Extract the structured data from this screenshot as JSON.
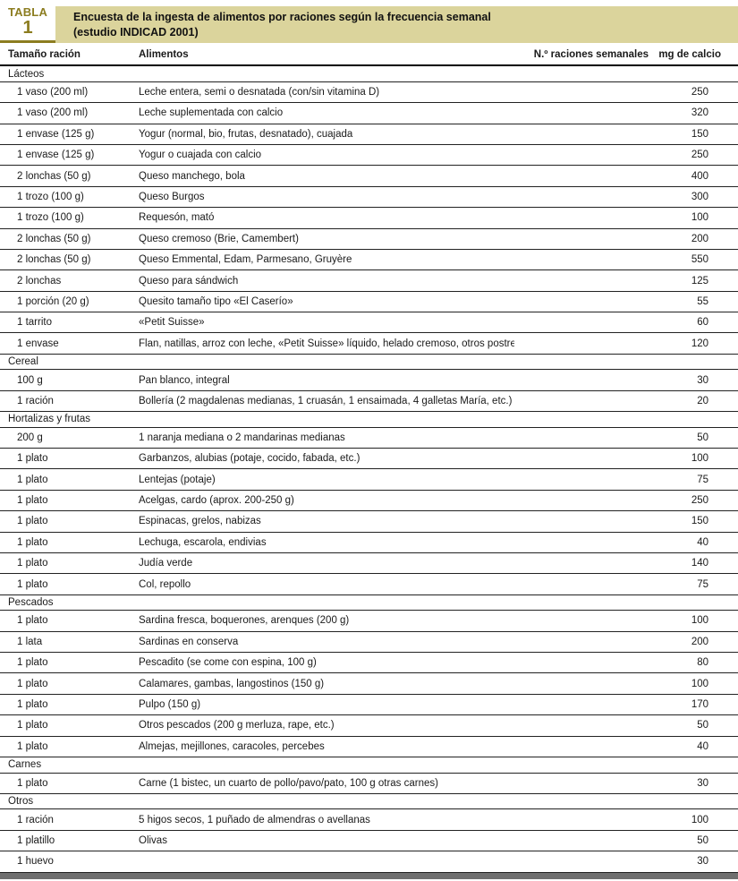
{
  "header": {
    "table_word": "TABLA",
    "table_number": "1",
    "title_line1": "Encuesta de la ingesta de alimentos por raciones según la frecuencia semanal",
    "title_line2": "(estudio INDICAD 2001)"
  },
  "columns": [
    "Tamaño ración",
    "Alimentos",
    "N.º raciones semanales",
    "mg de calcio"
  ],
  "colors": {
    "accent_olive": "#8c7d20",
    "banner_background": "#dbd49c",
    "bottom_bar_gray": "#6f6f6f",
    "row_line": "#222222"
  },
  "sections": [
    {
      "name": "Lácteos",
      "rows": [
        {
          "size": "1 vaso (200 ml)",
          "food": "Leche entera, semi o desnatada (con/sin vitamina D)",
          "servings": "",
          "calcium": "250"
        },
        {
          "size": "1 vaso (200 ml)",
          "food": "Leche suplementada con calcio",
          "servings": "",
          "calcium": "320"
        },
        {
          "size": "1 envase (125 g)",
          "food": "Yogur (normal, bio, frutas, desnatado), cuajada",
          "servings": "",
          "calcium": "150"
        },
        {
          "size": "1 envase (125 g)",
          "food": "Yogur o cuajada con calcio",
          "servings": "",
          "calcium": "250"
        },
        {
          "size": "2 lonchas (50 g)",
          "food": "Queso manchego, bola",
          "servings": "",
          "calcium": "400"
        },
        {
          "size": "1 trozo (100 g)",
          "food": "Queso Burgos",
          "servings": "",
          "calcium": "300"
        },
        {
          "size": "1 trozo (100 g)",
          "food": "Requesón, mató",
          "servings": "",
          "calcium": "100"
        },
        {
          "size": "2 lonchas (50 g)",
          "food": "Queso cremoso (Brie, Camembert)",
          "servings": "",
          "calcium": "200"
        },
        {
          "size": "2 lonchas (50 g)",
          "food": "Queso Emmental, Edam, Parmesano, Gruyère",
          "servings": "",
          "calcium": "550"
        },
        {
          "size": "2 lonchas",
          "food": "Queso para sándwich",
          "servings": "",
          "calcium": "125"
        },
        {
          "size": "1 porción (20 g)",
          "food": "Quesito tamaño tipo «El Caserío»",
          "servings": "",
          "calcium": "55"
        },
        {
          "size": "1 tarrito",
          "food": "«Petit Suisse»",
          "servings": "",
          "calcium": "60"
        },
        {
          "size": "1 envase",
          "food": "Flan, natillas, arroz con leche, «Petit Suisse» líquido, helado cremoso, otros postres lácteos",
          "servings": "",
          "calcium": "120"
        }
      ]
    },
    {
      "name": "Cereal",
      "rows": [
        {
          "size": "100 g",
          "food": "Pan blanco, integral",
          "servings": "",
          "calcium": "30"
        },
        {
          "size": "1 ración",
          "food": "Bollería (2 magdalenas medianas, 1 cruasán, 1 ensaimada, 4 galletas María, etc.)",
          "servings": "",
          "calcium": "20"
        }
      ]
    },
    {
      "name": "Hortalizas y frutas",
      "rows": [
        {
          "size": "200 g",
          "food": "1 naranja mediana o 2 mandarinas medianas",
          "servings": "",
          "calcium": "50"
        },
        {
          "size": "1 plato",
          "food": "Garbanzos, alubias (potaje, cocido, fabada, etc.)",
          "servings": "",
          "calcium": "100"
        },
        {
          "size": "1 plato",
          "food": "Lentejas (potaje)",
          "servings": "",
          "calcium": "75"
        },
        {
          "size": "1 plato",
          "food": "Acelgas, cardo (aprox. 200-250 g)",
          "servings": "",
          "calcium": "250"
        },
        {
          "size": "1 plato",
          "food": "Espinacas, grelos, nabizas",
          "servings": "",
          "calcium": "150"
        },
        {
          "size": "1 plato",
          "food": "Lechuga, escarola, endivias",
          "servings": "",
          "calcium": "40"
        },
        {
          "size": "1 plato",
          "food": "Judía verde",
          "servings": "",
          "calcium": "140"
        },
        {
          "size": "1 plato",
          "food": "Col, repollo",
          "servings": "",
          "calcium": "75"
        }
      ]
    },
    {
      "name": "Pescados",
      "rows": [
        {
          "size": "1 plato",
          "food": "Sardina fresca, boquerones, arenques (200 g)",
          "servings": "",
          "calcium": "100"
        },
        {
          "size": "1 lata",
          "food": "Sardinas en conserva",
          "servings": "",
          "calcium": "200"
        },
        {
          "size": "1 plato",
          "food": "Pescadito (se come con espina, 100 g)",
          "servings": "",
          "calcium": "80"
        },
        {
          "size": "1 plato",
          "food": "Calamares, gambas, langostinos (150 g)",
          "servings": "",
          "calcium": "100"
        },
        {
          "size": "1 plato",
          "food": "Pulpo (150 g)",
          "servings": "",
          "calcium": "170"
        },
        {
          "size": "1 plato",
          "food": "Otros pescados (200 g merluza, rape, etc.)",
          "servings": "",
          "calcium": "50"
        },
        {
          "size": "1 plato",
          "food": "Almejas, mejillones, caracoles, percebes",
          "servings": "",
          "calcium": "40"
        }
      ]
    },
    {
      "name": "Carnes",
      "rows": [
        {
          "size": "1 plato",
          "food": "Carne (1 bistec, un cuarto de pollo/pavo/pato, 100 g otras carnes)",
          "servings": "",
          "calcium": "30"
        }
      ]
    },
    {
      "name": "Otros",
      "rows": [
        {
          "size": "1 ración",
          "food": "5 higos secos, 1 puñado de almendras o avellanas",
          "servings": "",
          "calcium": "100"
        },
        {
          "size": "1 platillo",
          "food": "Olivas",
          "servings": "",
          "calcium": "50"
        },
        {
          "size": "1 huevo",
          "food": "",
          "servings": "",
          "calcium": "30"
        }
      ]
    }
  ]
}
